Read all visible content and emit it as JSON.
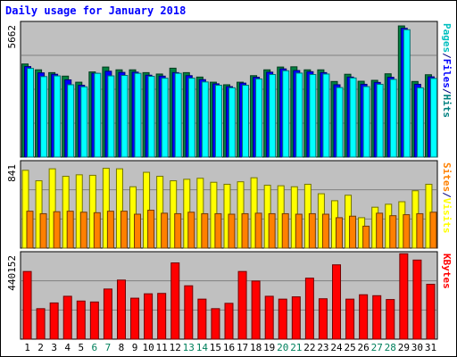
{
  "chart_data": {
    "type": "bar",
    "title": "Daily usage for January 2018",
    "categories": [
      "1",
      "2",
      "3",
      "4",
      "5",
      "6",
      "7",
      "8",
      "9",
      "10",
      "11",
      "12",
      "13",
      "14",
      "15",
      "16",
      "17",
      "18",
      "19",
      "20",
      "21",
      "22",
      "23",
      "24",
      "25",
      "26",
      "27",
      "28",
      "29",
      "30",
      "31"
    ],
    "weekend_days": [
      "6",
      "7",
      "13",
      "14",
      "20",
      "21",
      "27",
      "28"
    ],
    "panels": [
      {
        "id": "hits-files-pages",
        "max_label": "5662",
        "max_value": 5662,
        "side_label": [
          "Pages",
          "/",
          "Files",
          "/",
          "Hits"
        ],
        "series": [
          {
            "name": "Hits",
            "color": "#008040",
            "values": [
              3990,
              3740,
              3620,
              3470,
              3210,
              3650,
              3860,
              3740,
              3740,
              3620,
              3560,
              3810,
              3620,
              3430,
              3210,
              3100,
              3210,
              3490,
              3740,
              3860,
              3870,
              3740,
              3740,
              3240,
              3550,
              3250,
              3290,
              3570,
              5622,
              3240,
              3530
            ]
          },
          {
            "name": "Files",
            "color": "#0000ff",
            "values": [
              3880,
              3610,
              3550,
              3310,
              3080,
              3590,
              3680,
              3630,
              3640,
              3510,
              3470,
              3620,
              3490,
              3320,
              3140,
              3020,
              3170,
              3420,
              3640,
              3780,
              3710,
              3660,
              3620,
              3100,
              3430,
              3120,
              3200,
              3420,
              5520,
              3120,
              3440
            ]
          },
          {
            "name": "Pages",
            "color": "#00ffff",
            "values": [
              3800,
              3450,
              3480,
              3100,
              3010,
              3590,
              3480,
              3500,
              3590,
              3460,
              3380,
              3590,
              3380,
              3220,
              3080,
              2970,
              3080,
              3350,
              3540,
              3700,
              3600,
              3540,
              3560,
              2980,
              3390,
              3020,
              3120,
              3330,
              5460,
              2970,
              3370
            ]
          }
        ],
        "side_colors": [
          "#00bfbf",
          "#000080",
          "#0000ff",
          "#000080",
          "#008080"
        ]
      },
      {
        "id": "visits-sites",
        "max_label": "841",
        "max_value": 841,
        "side_label": [
          "Sites",
          "/",
          "Visits"
        ],
        "series": [
          {
            "name": "Visits",
            "color": "#ffff00",
            "values": [
              780,
              675,
              795,
              720,
              735,
              730,
              800,
              795,
              615,
              760,
              720,
              675,
              690,
              700,
              660,
              640,
              665,
              705,
              630,
              625,
              615,
              640,
              545,
              475,
              530,
              305,
              410,
              440,
              465,
              575,
              640
            ]
          },
          {
            "name": "Sites",
            "color": "#ff8000",
            "values": [
              370,
              345,
              365,
              370,
              360,
              355,
              370,
              370,
              340,
              380,
              350,
              345,
              360,
              345,
              345,
              340,
              345,
              350,
              345,
              345,
              340,
              345,
              340,
              305,
              320,
              220,
              350,
              325,
              335,
              345,
              360
            ]
          }
        ],
        "side_colors": [
          "#ff8000",
          "#000080",
          "#ffff00"
        ]
      },
      {
        "id": "kbytes",
        "max_label": "440152",
        "max_value": 440152,
        "side_label": [
          "KBytes"
        ],
        "series": [
          {
            "name": "KBytes",
            "color": "#ff0000",
            "values": [
              355000,
              160000,
              190000,
              225000,
              200000,
              195000,
              263000,
              310000,
              215000,
              238000,
              240000,
              400000,
              280000,
              210000,
              160000,
              188000,
              355000,
              305000,
              225000,
              210000,
              222000,
              320000,
              212000,
              390000,
              210000,
              233000,
              228000,
              208000,
              448000,
              415000,
              288000
            ]
          }
        ],
        "side_colors": [
          "#ff0000"
        ]
      }
    ]
  },
  "colors": {
    "plot_bg": "#c0c0c0",
    "frame_bg": "#ffffff",
    "title": "#0000ff",
    "weekday_label": "#000000",
    "weekend_label": "#00805c",
    "grid": "#808080"
  }
}
